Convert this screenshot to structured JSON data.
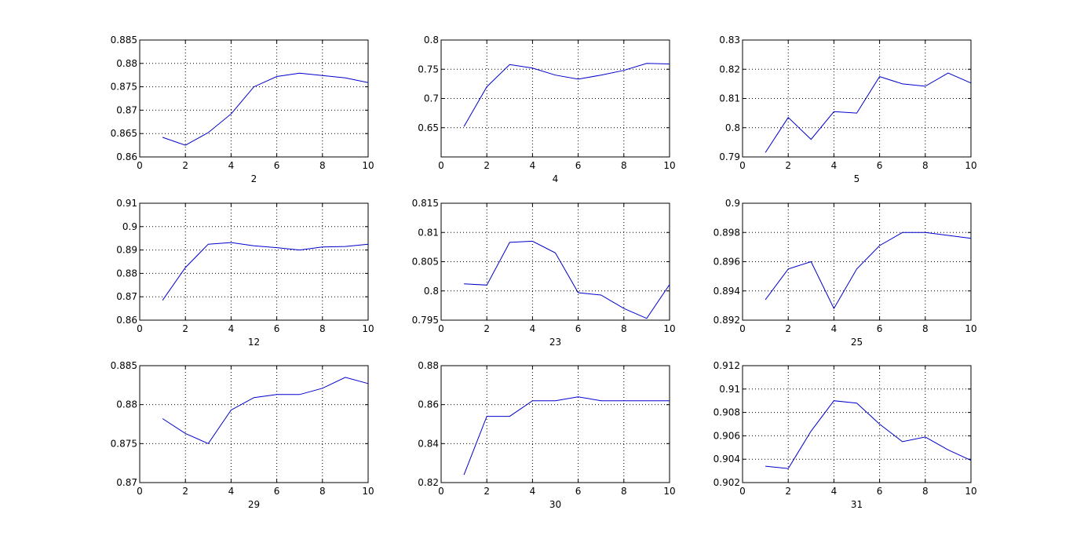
{
  "figure": {
    "background": "#ffffff",
    "line_color": "#0000cc",
    "grid_color": "#000000"
  },
  "chart_data": [
    {
      "type": "line",
      "xlabel": "2",
      "xlim": [
        0,
        10
      ],
      "ylim": [
        0.86,
        0.885
      ],
      "xticks": [
        "0",
        "2",
        "4",
        "6",
        "8",
        "10"
      ],
      "yticks": [
        "0.86",
        "0.865",
        "0.87",
        "0.875",
        "0.88",
        "0.885"
      ],
      "grid": true,
      "x": [
        1,
        2,
        3,
        4,
        5,
        6,
        7,
        8,
        9,
        10
      ],
      "values": [
        0.8642,
        0.8625,
        0.8652,
        0.8692,
        0.875,
        0.8772,
        0.8779,
        0.8774,
        0.8769,
        0.8759
      ]
    },
    {
      "type": "line",
      "xlabel": "4",
      "xlim": [
        0,
        10
      ],
      "ylim": [
        0.6,
        0.8
      ],
      "xticks": [
        "0",
        "2",
        "4",
        "6",
        "8",
        "10"
      ],
      "yticks": [
        "0.65",
        "0.7",
        "0.75",
        "0.8"
      ],
      "grid": true,
      "x": [
        1,
        2,
        3,
        4,
        5,
        6,
        7,
        8,
        9,
        10
      ],
      "values": [
        0.652,
        0.72,
        0.758,
        0.752,
        0.74,
        0.733,
        0.74,
        0.748,
        0.76,
        0.759
      ]
    },
    {
      "type": "line",
      "xlabel": "5",
      "xlim": [
        0,
        10
      ],
      "ylim": [
        0.79,
        0.83
      ],
      "xticks": [
        "0",
        "2",
        "4",
        "6",
        "8",
        "10"
      ],
      "yticks": [
        "0.79",
        "0.8",
        "0.81",
        "0.82",
        "0.83"
      ],
      "grid": true,
      "x": [
        1,
        2,
        3,
        4,
        5,
        6,
        7,
        8,
        9,
        10
      ],
      "values": [
        0.7915,
        0.8035,
        0.796,
        0.8055,
        0.805,
        0.8175,
        0.815,
        0.8142,
        0.8187,
        0.8153
      ]
    },
    {
      "type": "line",
      "xlabel": "12",
      "xlim": [
        0,
        10
      ],
      "ylim": [
        0.86,
        0.91
      ],
      "xticks": [
        "0",
        "2",
        "4",
        "6",
        "8",
        "10"
      ],
      "yticks": [
        "0.86",
        "0.87",
        "0.88",
        "0.89",
        "0.9",
        "0.91"
      ],
      "grid": true,
      "x": [
        1,
        2,
        3,
        4,
        5,
        6,
        7,
        8,
        9,
        10
      ],
      "values": [
        0.8685,
        0.8825,
        0.8925,
        0.8932,
        0.8918,
        0.891,
        0.89,
        0.8913,
        0.8915,
        0.8925
      ]
    },
    {
      "type": "line",
      "xlabel": "23",
      "xlim": [
        0,
        10
      ],
      "ylim": [
        0.795,
        0.815
      ],
      "xticks": [
        "0",
        "2",
        "4",
        "6",
        "8",
        "10"
      ],
      "yticks": [
        "0.795",
        "0.8",
        "0.805",
        "0.81",
        "0.815"
      ],
      "grid": true,
      "x": [
        1,
        2,
        3,
        4,
        5,
        6,
        7,
        8,
        9,
        10
      ],
      "values": [
        0.8012,
        0.801,
        0.8083,
        0.8085,
        0.8065,
        0.7997,
        0.7993,
        0.797,
        0.7953,
        0.8011
      ]
    },
    {
      "type": "line",
      "xlabel": "25",
      "xlim": [
        0,
        10
      ],
      "ylim": [
        0.892,
        0.9
      ],
      "xticks": [
        "0",
        "2",
        "4",
        "6",
        "8",
        "10"
      ],
      "yticks": [
        "0.892",
        "0.894",
        "0.896",
        "0.898",
        "0.9"
      ],
      "grid": true,
      "x": [
        1,
        2,
        3,
        4,
        5,
        6,
        7,
        8,
        9,
        10
      ],
      "values": [
        0.8934,
        0.8955,
        0.896,
        0.8928,
        0.8955,
        0.8971,
        0.898,
        0.898,
        0.8978,
        0.8976
      ]
    },
    {
      "type": "line",
      "xlabel": "29",
      "xlim": [
        0,
        10
      ],
      "ylim": [
        0.87,
        0.885
      ],
      "xticks": [
        "0",
        "2",
        "4",
        "6",
        "8",
        "10"
      ],
      "yticks": [
        "0.87",
        "0.875",
        "0.88",
        "0.885"
      ],
      "grid": true,
      "x": [
        1,
        2,
        3,
        4,
        5,
        6,
        7,
        8,
        9,
        10
      ],
      "values": [
        0.8782,
        0.8763,
        0.875,
        0.8793,
        0.8809,
        0.8813,
        0.8813,
        0.8821,
        0.8835,
        0.8827
      ]
    },
    {
      "type": "line",
      "xlabel": "30",
      "xlim": [
        0,
        10
      ],
      "ylim": [
        0.82,
        0.88
      ],
      "xticks": [
        "0",
        "2",
        "4",
        "6",
        "8",
        "10"
      ],
      "yticks": [
        "0.82",
        "0.84",
        "0.86",
        "0.88"
      ],
      "grid": true,
      "x": [
        1,
        2,
        3,
        4,
        5,
        6,
        7,
        8,
        9,
        10
      ],
      "values": [
        0.824,
        0.854,
        0.854,
        0.862,
        0.862,
        0.864,
        0.862,
        0.862,
        0.862,
        0.862
      ]
    },
    {
      "type": "line",
      "xlabel": "31",
      "xlim": [
        0,
        10
      ],
      "ylim": [
        0.902,
        0.912
      ],
      "xticks": [
        "0",
        "2",
        "4",
        "6",
        "8",
        "10"
      ],
      "yticks": [
        "0.902",
        "0.904",
        "0.906",
        "0.908",
        "0.91",
        "0.912"
      ],
      "grid": true,
      "x": [
        1,
        2,
        3,
        4,
        5,
        6,
        7,
        8,
        9,
        10
      ],
      "values": [
        0.9034,
        0.9032,
        0.9064,
        0.909,
        0.9088,
        0.907,
        0.9055,
        0.9059,
        0.9048,
        0.9039
      ]
    }
  ]
}
